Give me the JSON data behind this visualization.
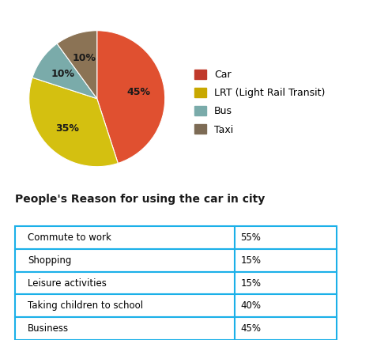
{
  "pie_labels": [
    "Car",
    "LRT (Light Rail Transit)",
    "Bus",
    "Taxi"
  ],
  "pie_values": [
    45,
    35,
    10,
    10
  ],
  "pie_colors": [
    "#E05030",
    "#D4C010",
    "#7AABAA",
    "#8B7355"
  ],
  "pie_autopct_labels": [
    "45%",
    "35%",
    "10%",
    "10%"
  ],
  "legend_labels": [
    "Car",
    "LRT (Light Rail Transit)",
    "Bus",
    "Taxi"
  ],
  "legend_colors": [
    "#C0392B",
    "#C8A800",
    "#7AABAA",
    "#7D6B55"
  ],
  "table_title": "People's Reason for using the car in city",
  "table_rows": [
    [
      "Commute to work",
      "55%"
    ],
    [
      "Shopping",
      "15%"
    ],
    [
      "Leisure activities",
      "15%"
    ],
    [
      "Taking children to school",
      "40%"
    ],
    [
      "Business",
      "45%"
    ]
  ],
  "table_border_color": "#1BB0E8",
  "background_color": "#FFFFFF",
  "label_color": "#1a1a1a",
  "pie_label_fontsize": 9,
  "legend_fontsize": 9,
  "title_fontsize": 10,
  "table_fontsize": 8.5
}
